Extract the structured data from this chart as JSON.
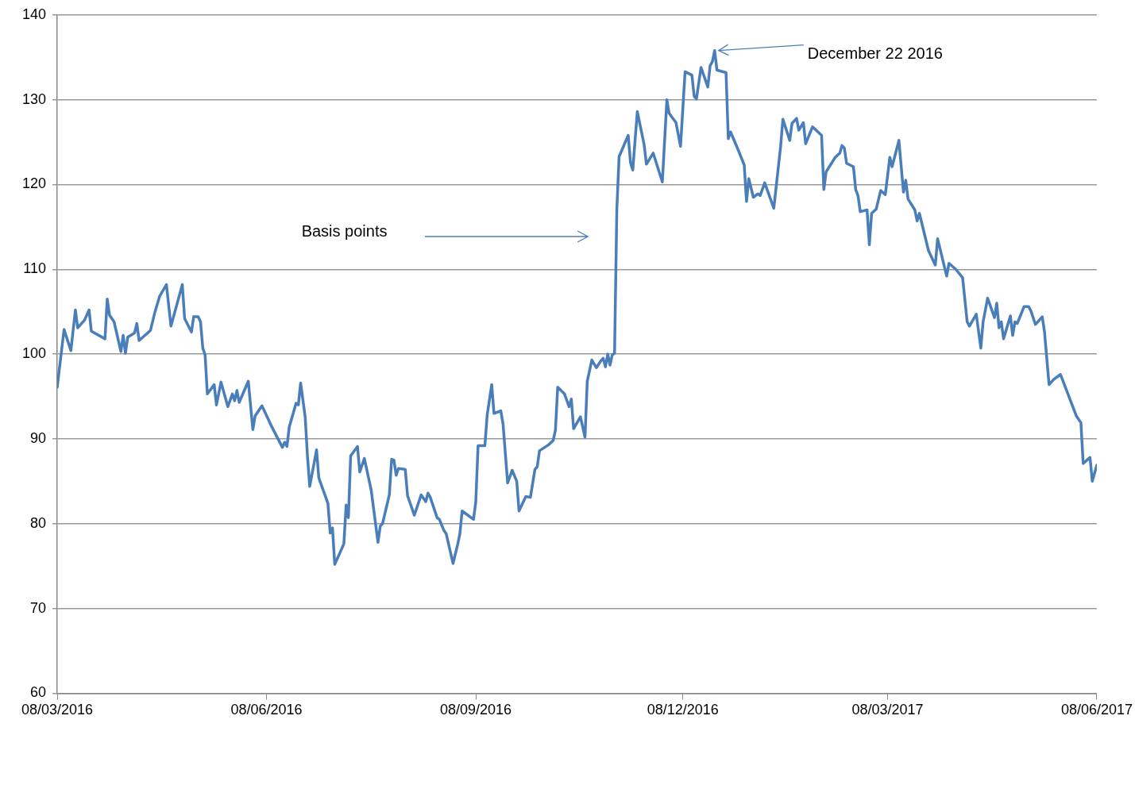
{
  "chart_data": {
    "type": "line",
    "color": "#4a7ebb",
    "marker": "none",
    "line_style": "solid",
    "grid": "y",
    "legend": false,
    "x": [
      "2016-03-08",
      "2016-03-11",
      "2016-03-14",
      "2016-03-16",
      "2016-03-17",
      "2016-03-20",
      "2016-03-22",
      "2016-03-23",
      "2016-03-29",
      "2016-03-30",
      "2016-03-31",
      "2016-04-02",
      "2016-04-05",
      "2016-04-06",
      "2016-04-07",
      "2016-04-08",
      "2016-04-11",
      "2016-04-12",
      "2016-04-13",
      "2016-04-18",
      "2016-04-20",
      "2016-04-22",
      "2016-04-25",
      "2016-04-27",
      "2016-05-02",
      "2016-05-03",
      "2016-05-06",
      "2016-05-07",
      "2016-05-09",
      "2016-05-10",
      "2016-05-11",
      "2016-05-12",
      "2016-05-13",
      "2016-05-16",
      "2016-05-17",
      "2016-05-19",
      "2016-05-22",
      "2016-05-24",
      "2016-05-25",
      "2016-05-26",
      "2016-05-27",
      "2016-05-31",
      "2016-06-02",
      "2016-06-03",
      "2016-06-06",
      "2016-06-10",
      "2016-06-15",
      "2016-06-16",
      "2016-06-17",
      "2016-06-18",
      "2016-06-21",
      "2016-06-22",
      "2016-06-23",
      "2016-06-25",
      "2016-06-26",
      "2016-06-27",
      "2016-06-30",
      "2016-07-01",
      "2016-07-05",
      "2016-07-06",
      "2016-07-07",
      "2016-07-08",
      "2016-07-12",
      "2016-07-13",
      "2016-07-14",
      "2016-07-15",
      "2016-07-18",
      "2016-07-19",
      "2016-07-21",
      "2016-07-24",
      "2016-07-27",
      "2016-07-28",
      "2016-07-29",
      "2016-08-01",
      "2016-08-02",
      "2016-08-03",
      "2016-08-04",
      "2016-08-05",
      "2016-08-08",
      "2016-08-09",
      "2016-08-12",
      "2016-08-15",
      "2016-08-17",
      "2016-08-18",
      "2016-08-19",
      "2016-08-22",
      "2016-08-23",
      "2016-08-25",
      "2016-08-26",
      "2016-08-29",
      "2016-08-31",
      "2016-09-01",
      "2016-09-02",
      "2016-09-07",
      "2016-09-08",
      "2016-09-09",
      "2016-09-12",
      "2016-09-13",
      "2016-09-15",
      "2016-09-16",
      "2016-09-19",
      "2016-09-20",
      "2016-09-22",
      "2016-09-24",
      "2016-09-26",
      "2016-09-27",
      "2016-09-30",
      "2016-10-02",
      "2016-10-04",
      "2016-10-05",
      "2016-10-06",
      "2016-10-10",
      "2016-10-12",
      "2016-10-13",
      "2016-10-14",
      "2016-10-17",
      "2016-10-19",
      "2016-10-20",
      "2016-10-21",
      "2016-10-24",
      "2016-10-26",
      "2016-10-27",
      "2016-10-29",
      "2016-10-31",
      "2016-11-02",
      "2016-11-03",
      "2016-11-04",
      "2016-11-05",
      "2016-11-06",
      "2016-11-07",
      "2016-11-08",
      "2016-11-09",
      "2016-11-10",
      "2016-11-14",
      "2016-11-15",
      "2016-11-16",
      "2016-11-18",
      "2016-11-21",
      "2016-11-22",
      "2016-11-25",
      "2016-11-29",
      "2016-12-01",
      "2016-12-02",
      "2016-12-05",
      "2016-12-07",
      "2016-12-09",
      "2016-12-12",
      "2016-12-13",
      "2016-12-14",
      "2016-12-16",
      "2016-12-19",
      "2016-12-20",
      "2016-12-21",
      "2016-12-22",
      "2016-12-23",
      "2016-12-27",
      "2016-12-28",
      "2016-12-29",
      "2017-01-01",
      "2017-01-04",
      "2017-01-05",
      "2017-01-06",
      "2017-01-08",
      "2017-01-10",
      "2017-01-11",
      "2017-01-13",
      "2017-01-17",
      "2017-01-20",
      "2017-01-21",
      "2017-01-24",
      "2017-01-25",
      "2017-01-27",
      "2017-01-28",
      "2017-01-30",
      "2017-01-31",
      "2017-02-03",
      "2017-02-07",
      "2017-02-08",
      "2017-02-09",
      "2017-02-13",
      "2017-02-15",
      "2017-02-16",
      "2017-02-17",
      "2017-02-18",
      "2017-02-21",
      "2017-02-22",
      "2017-02-23",
      "2017-02-24",
      "2017-02-27",
      "2017-02-28",
      "2017-03-01",
      "2017-03-03",
      "2017-03-05",
      "2017-03-07",
      "2017-03-09",
      "2017-03-10",
      "2017-03-13",
      "2017-03-15",
      "2017-03-16",
      "2017-03-17",
      "2017-03-20",
      "2017-03-21",
      "2017-03-22",
      "2017-03-26",
      "2017-03-29",
      "2017-03-30",
      "2017-03-31",
      "2017-04-03",
      "2017-04-04",
      "2017-04-07",
      "2017-04-10",
      "2017-04-12",
      "2017-04-13",
      "2017-04-16",
      "2017-04-18",
      "2017-04-19",
      "2017-04-21",
      "2017-04-24",
      "2017-04-25",
      "2017-04-26",
      "2017-04-27",
      "2017-04-28",
      "2017-05-01",
      "2017-05-02",
      "2017-05-03",
      "2017-05-04",
      "2017-05-07",
      "2017-05-09",
      "2017-05-10",
      "2017-05-12",
      "2017-05-15",
      "2017-05-16",
      "2017-05-18",
      "2017-05-20",
      "2017-05-23",
      "2017-05-26",
      "2017-05-30",
      "2017-06-01",
      "2017-06-02",
      "2017-06-05",
      "2017-06-06",
      "2017-06-08"
    ],
    "values": [
      96.1,
      102.9,
      100.4,
      105.2,
      103.1,
      104.0,
      105.2,
      102.7,
      101.8,
      106.5,
      104.6,
      103.8,
      100.3,
      102.2,
      100.1,
      102.0,
      102.5,
      103.6,
      101.6,
      102.8,
      105.0,
      106.8,
      108.2,
      103.3,
      108.2,
      104.2,
      102.6,
      104.4,
      104.4,
      103.8,
      100.7,
      99.9,
      95.3,
      96.4,
      94.0,
      96.7,
      93.8,
      95.3,
      94.5,
      95.7,
      94.3,
      96.8,
      91.1,
      92.7,
      93.9,
      91.6,
      89.0,
      89.6,
      89.1,
      91.4,
      94.2,
      94.0,
      96.6,
      92.6,
      88.0,
      84.4,
      88.7,
      85.4,
      82.4,
      78.9,
      79.5,
      75.2,
      77.6,
      82.2,
      80.7,
      88.0,
      89.1,
      86.1,
      87.7,
      84.0,
      77.8,
      79.7,
      80.0,
      83.4,
      87.6,
      87.5,
      85.7,
      86.5,
      86.4,
      83.3,
      81.0,
      83.4,
      82.6,
      83.6,
      83.1,
      80.7,
      80.5,
      79.2,
      78.8,
      75.3,
      77.5,
      78.8,
      81.5,
      80.5,
      82.6,
      89.2,
      89.2,
      92.8,
      96.4,
      93.0,
      93.3,
      91.7,
      84.8,
      86.3,
      85.0,
      81.5,
      83.2,
      83.1,
      86.4,
      86.7,
      88.6,
      89.3,
      89.8,
      91.0,
      96.1,
      95.3,
      93.8,
      94.7,
      91.2,
      92.6,
      90.2,
      96.8,
      99.3,
      98.4,
      99.2,
      99.5,
      98.5,
      100.0,
      98.7,
      99.9,
      100.1,
      117.1,
      123.3,
      125.8,
      122.6,
      121.7,
      128.6,
      124.7,
      122.4,
      123.7,
      120.3,
      130.0,
      128.4,
      127.3,
      124.5,
      133.3,
      132.9,
      130.4,
      130.1,
      133.8,
      131.5,
      134.0,
      134.5,
      135.8,
      133.5,
      133.2,
      125.4,
      126.2,
      124.3,
      122.3,
      118.0,
      120.7,
      118.5,
      118.9,
      118.7,
      120.2,
      117.2,
      124.5,
      127.7,
      125.2,
      127.2,
      127.8,
      126.4,
      127.3,
      124.8,
      126.8,
      125.8,
      119.4,
      121.5,
      123.2,
      123.7,
      124.6,
      124.3,
      122.5,
      122.1,
      119.4,
      118.7,
      116.8,
      117.0,
      112.9,
      116.6,
      117.1,
      119.3,
      118.8,
      123.2,
      122.1,
      125.2,
      119.1,
      120.5,
      118.3,
      117.0,
      115.7,
      116.6,
      112.2,
      110.5,
      113.6,
      112.5,
      109.2,
      110.7,
      110.0,
      109.0,
      103.8,
      103.3,
      104.7,
      100.7,
      103.8,
      106.6,
      104.3,
      106.0,
      103.1,
      103.8,
      101.8,
      104.5,
      102.2,
      103.8,
      103.6,
      105.6,
      105.6,
      105.1,
      103.5,
      104.4,
      102.6,
      96.4,
      97.0,
      97.6,
      95.5,
      92.7,
      91.9,
      87.1,
      87.8,
      85.0,
      86.9
    ],
    "xlim": [
      "2016-03-08",
      "2017-06-08"
    ],
    "xticks": [
      {
        "value": "2016-03-08",
        "label": "08/03/2016"
      },
      {
        "value": "2016-06-08",
        "label": "08/06/2016"
      },
      {
        "value": "2016-09-08",
        "label": "08/09/2016"
      },
      {
        "value": "2016-12-08",
        "label": "08/12/2016"
      },
      {
        "value": "2017-03-08",
        "label": "08/03/2017"
      },
      {
        "value": "2017-06-08",
        "label": "08/06/2017"
      }
    ],
    "ylim": [
      60,
      140
    ],
    "yticks": [
      60,
      70,
      80,
      90,
      100,
      110,
      120,
      130,
      140
    ],
    "annotations": [
      "Basis points",
      {
        "text": "December 22 2016",
        "x": "2016-12-22",
        "y": 135.8
      }
    ]
  }
}
